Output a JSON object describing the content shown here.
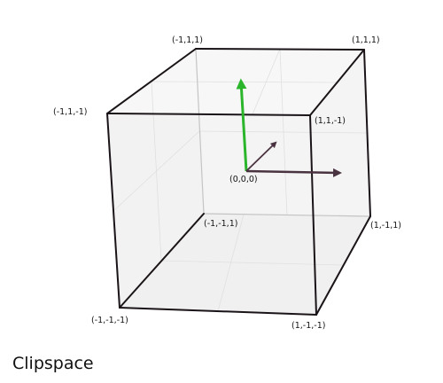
{
  "caption": "Clipspace",
  "vertex_labels": {
    "nnp": "(-1,1,1)",
    "ppp": "(1,1,1)",
    "npn": "(-1,1,-1)",
    "ppn": "(1,1,-1)",
    "origin": "(0,0,0)",
    "nnp_back": "(-1,-1,1)",
    "pnp": "(1,-1,1)",
    "nnn": "(-1,-1,-1)",
    "pnn": "(1,-1,-1)"
  },
  "colors": {
    "edge": "#1a1418",
    "inner_edge": "#b8b8b8",
    "face_fill": "#f4f4f4",
    "grid": "#e0e0e0",
    "axis_y": "#2bb52b",
    "axis_x": "#4a3340",
    "axis_z": "#4a3340"
  }
}
